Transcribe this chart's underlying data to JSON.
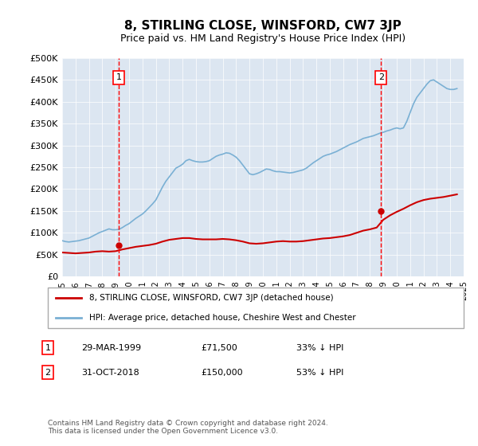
{
  "title": "8, STIRLING CLOSE, WINSFORD, CW7 3JP",
  "subtitle": "Price paid vs. HM Land Registry's House Price Index (HPI)",
  "ylabel": "",
  "xlabel": "",
  "ylim": [
    0,
    500000
  ],
  "yticks": [
    0,
    50000,
    100000,
    150000,
    200000,
    250000,
    300000,
    350000,
    400000,
    450000,
    500000
  ],
  "ytick_labels": [
    "£0",
    "£50K",
    "£100K",
    "£150K",
    "£200K",
    "£250K",
    "£300K",
    "£350K",
    "£400K",
    "£450K",
    "£500K"
  ],
  "bg_color": "#dce6f1",
  "plot_bg_color": "#dce6f1",
  "hpi_color": "#7ab0d4",
  "property_color": "#cc0000",
  "marker1_year": 1999.24,
  "marker2_year": 2018.83,
  "marker1_price": 71500,
  "marker2_price": 150000,
  "annotation1": [
    "1",
    "29-MAR-1999",
    "£71,500",
    "33% ↓ HPI"
  ],
  "annotation2": [
    "2",
    "31-OCT-2018",
    "£150,000",
    "53% ↓ HPI"
  ],
  "legend_line1": "8, STIRLING CLOSE, WINSFORD, CW7 3JP (detached house)",
  "legend_line2": "HPI: Average price, detached house, Cheshire West and Chester",
  "footnote": "Contains HM Land Registry data © Crown copyright and database right 2024.\nThis data is licensed under the Open Government Licence v3.0.",
  "hpi_data_x": [
    1995.0,
    1995.25,
    1995.5,
    1995.75,
    1996.0,
    1996.25,
    1996.5,
    1996.75,
    1997.0,
    1997.25,
    1997.5,
    1997.75,
    1998.0,
    1998.25,
    1998.5,
    1998.75,
    1999.0,
    1999.25,
    1999.5,
    1999.75,
    2000.0,
    2000.25,
    2000.5,
    2000.75,
    2001.0,
    2001.25,
    2001.5,
    2001.75,
    2002.0,
    2002.25,
    2002.5,
    2002.75,
    2003.0,
    2003.25,
    2003.5,
    2003.75,
    2004.0,
    2004.25,
    2004.5,
    2004.75,
    2005.0,
    2005.25,
    2005.5,
    2005.75,
    2006.0,
    2006.25,
    2006.5,
    2006.75,
    2007.0,
    2007.25,
    2007.5,
    2007.75,
    2008.0,
    2008.25,
    2008.5,
    2008.75,
    2009.0,
    2009.25,
    2009.5,
    2009.75,
    2010.0,
    2010.25,
    2010.5,
    2010.75,
    2011.0,
    2011.25,
    2011.5,
    2011.75,
    2012.0,
    2012.25,
    2012.5,
    2012.75,
    2013.0,
    2013.25,
    2013.5,
    2013.75,
    2014.0,
    2014.25,
    2014.5,
    2014.75,
    2015.0,
    2015.25,
    2015.5,
    2015.75,
    2016.0,
    2016.25,
    2016.5,
    2016.75,
    2017.0,
    2017.25,
    2017.5,
    2017.75,
    2018.0,
    2018.25,
    2018.5,
    2018.75,
    2019.0,
    2019.25,
    2019.5,
    2019.75,
    2020.0,
    2020.25,
    2020.5,
    2020.75,
    2021.0,
    2021.25,
    2021.5,
    2021.75,
    2022.0,
    2022.25,
    2022.5,
    2022.75,
    2023.0,
    2023.25,
    2023.5,
    2023.75,
    2024.0,
    2024.25,
    2024.5
  ],
  "hpi_data_y": [
    82000,
    80000,
    79000,
    80000,
    81000,
    82000,
    84000,
    86000,
    88000,
    92000,
    96000,
    100000,
    103000,
    106000,
    109000,
    107000,
    107000,
    108000,
    112000,
    117000,
    121000,
    127000,
    133000,
    138000,
    143000,
    150000,
    158000,
    166000,
    175000,
    190000,
    205000,
    218000,
    228000,
    238000,
    248000,
    252000,
    257000,
    265000,
    268000,
    265000,
    263000,
    262000,
    262000,
    263000,
    265000,
    270000,
    275000,
    278000,
    280000,
    283000,
    282000,
    278000,
    273000,
    265000,
    255000,
    245000,
    235000,
    233000,
    235000,
    238000,
    242000,
    246000,
    245000,
    242000,
    240000,
    240000,
    239000,
    238000,
    237000,
    238000,
    240000,
    242000,
    244000,
    248000,
    254000,
    260000,
    265000,
    270000,
    275000,
    278000,
    280000,
    283000,
    286000,
    290000,
    294000,
    298000,
    302000,
    305000,
    308000,
    312000,
    316000,
    318000,
    320000,
    322000,
    325000,
    328000,
    330000,
    333000,
    335000,
    338000,
    340000,
    338000,
    340000,
    355000,
    375000,
    395000,
    410000,
    420000,
    430000,
    440000,
    448000,
    450000,
    445000,
    440000,
    435000,
    430000,
    428000,
    428000,
    430000
  ],
  "property_data_x": [
    1995.0,
    1995.5,
    1996.0,
    1996.5,
    1997.0,
    1997.5,
    1998.0,
    1998.5,
    1999.0,
    1999.5,
    2000.0,
    2000.5,
    2001.0,
    2001.5,
    2002.0,
    2002.5,
    2003.0,
    2003.5,
    2004.0,
    2004.5,
    2005.0,
    2005.5,
    2006.0,
    2006.5,
    2007.0,
    2007.5,
    2008.0,
    2008.5,
    2009.0,
    2009.5,
    2010.0,
    2010.5,
    2011.0,
    2011.5,
    2012.0,
    2012.5,
    2013.0,
    2013.5,
    2014.0,
    2014.5,
    2015.0,
    2015.5,
    2016.0,
    2016.5,
    2017.0,
    2017.5,
    2018.0,
    2018.5,
    2019.0,
    2019.5,
    2020.0,
    2020.5,
    2021.0,
    2021.5,
    2022.0,
    2022.5,
    2023.0,
    2023.5,
    2024.0,
    2024.5
  ],
  "property_data_y": [
    55000,
    54000,
    53000,
    54000,
    55000,
    57000,
    58000,
    57000,
    58000,
    62000,
    65000,
    68000,
    70000,
    72000,
    75000,
    80000,
    84000,
    86000,
    88000,
    88000,
    86000,
    85000,
    85000,
    85000,
    86000,
    85000,
    83000,
    80000,
    76000,
    75000,
    76000,
    78000,
    80000,
    81000,
    80000,
    80000,
    81000,
    83000,
    85000,
    87000,
    88000,
    90000,
    92000,
    95000,
    100000,
    105000,
    108000,
    112000,
    130000,
    140000,
    148000,
    155000,
    163000,
    170000,
    175000,
    178000,
    180000,
    182000,
    185000,
    188000
  ],
  "xmin": 1995,
  "xmax": 2025,
  "xticks": [
    1995,
    1996,
    1997,
    1998,
    1999,
    2000,
    2001,
    2002,
    2003,
    2004,
    2005,
    2006,
    2007,
    2008,
    2009,
    2010,
    2011,
    2012,
    2013,
    2014,
    2015,
    2016,
    2017,
    2018,
    2019,
    2020,
    2021,
    2022,
    2023,
    2024,
    2025
  ]
}
